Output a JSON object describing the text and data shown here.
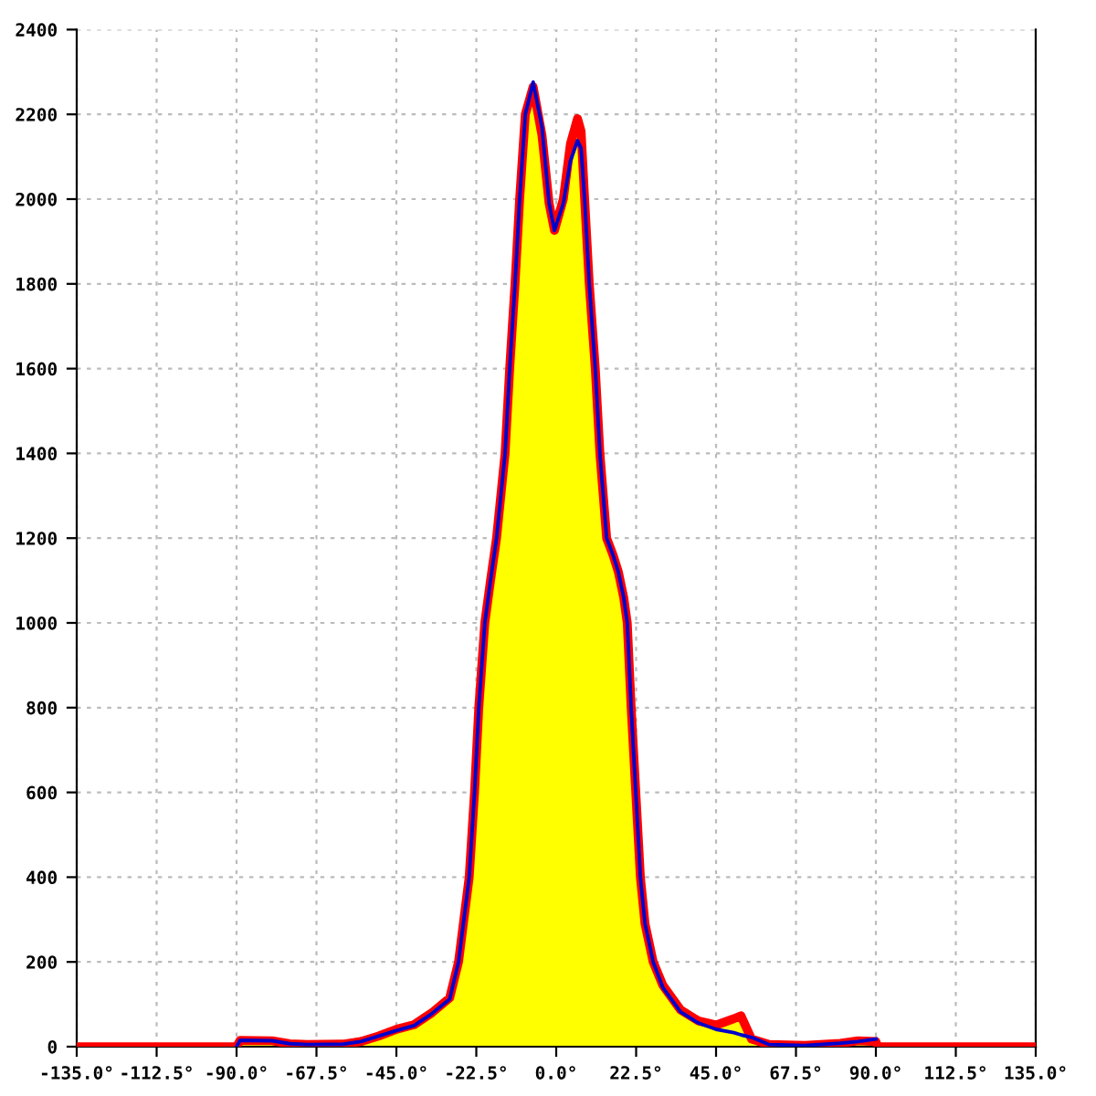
{
  "chart_data": {
    "type": "area",
    "xlim": [
      -135,
      135
    ],
    "xticks": [
      {
        "value": -135,
        "label": "-135.0°"
      },
      {
        "value": -112.5,
        "label": "-112.5°"
      },
      {
        "value": -90,
        "label": "-90.0°"
      },
      {
        "value": -67.5,
        "label": "-67.5°"
      },
      {
        "value": -45,
        "label": "-45.0°"
      },
      {
        "value": -22.5,
        "label": "-22.5°"
      },
      {
        "value": 0,
        "label": "0.0°"
      },
      {
        "value": 22.5,
        "label": "22.5°"
      },
      {
        "value": 45,
        "label": "45.0°"
      },
      {
        "value": 67.5,
        "label": "67.5°"
      },
      {
        "value": 90,
        "label": "90.0°"
      },
      {
        "value": 112.5,
        "label": "112.5°"
      },
      {
        "value": 135,
        "label": "135.0°"
      }
    ],
    "ylim": [
      0,
      2400
    ],
    "yticks": [
      0,
      200,
      400,
      600,
      800,
      1000,
      1200,
      1400,
      1600,
      1800,
      2000,
      2200,
      2400
    ],
    "grid": true,
    "series": [
      {
        "color": "#ff0000",
        "colors": [
          "#ffff00",
          "#ffff00",
          "#ffff00",
          "#ffff00",
          "#ffff00",
          "#ffff00",
          "#ffff00",
          "#ffff00",
          "#ffff00",
          "#ffff00",
          "#ffff00",
          "#ffff00",
          "#ffff00",
          "#ffff00",
          "#ffff00",
          "#ffff00",
          "#ffff00",
          "#ffff00",
          "#ffff00",
          "#ffff00",
          "#ffff00",
          "#ffff00",
          "#ffff00",
          "#ffff00",
          "#ffff00",
          "#ffff00",
          "#ffff00",
          "#ffff00",
          "#ffff00",
          "#ffff00",
          "#ffff00",
          "#ffff00",
          "#ffff00",
          "#ffff00",
          "#ffff00",
          "#ffff00",
          "#ffff00",
          "#ffff00",
          "#ffff00",
          "#ffff00",
          "#ffff00",
          "#ffff00",
          "#ffff00",
          "#ffff00",
          "#ffff00",
          "#ffff00",
          "#ffff00",
          "#ffff00",
          "#ffff00",
          "#ffff00",
          "#ffff00",
          "#ffff00",
          "#ffff00",
          "#ffff00",
          "#ffff00",
          "#ffff00",
          "#ffff00",
          "#ffff00",
          "#ffff00",
          "#ffff00",
          "#ffff00"
        ],
        "x": [
          -135,
          -90,
          -89,
          -80,
          -75,
          -70,
          -60,
          -55,
          -50,
          -45,
          -40,
          -35,
          -30,
          -27.5,
          -24.5,
          -23,
          -21.8,
          -20.1,
          -18.5,
          -16.8,
          -14.4,
          -13.1,
          -11.6,
          -10.3,
          -8.7,
          -6.5,
          -4,
          -2,
          -0.5,
          2,
          4,
          6,
          7,
          8,
          9.3,
          11,
          12.3,
          14.2,
          16,
          17.5,
          19,
          20,
          21.1,
          22.4,
          23.7,
          25,
          27.3,
          30,
          35,
          40,
          45,
          50,
          52,
          55,
          60,
          70,
          80,
          85,
          90,
          90.5,
          135
        ],
        "values": [
          0,
          0,
          15,
          14,
          7,
          5,
          6,
          12,
          25,
          41,
          52,
          80,
          115,
          200,
          400,
          600,
          800,
          1000,
          1100,
          1200,
          1400,
          1600,
          1800,
          2000,
          2200,
          2265,
          2150,
          1990,
          1926,
          2000,
          2130,
          2190,
          2160,
          2000,
          1800,
          1600,
          1400,
          1200,
          1160,
          1120,
          1060,
          1000,
          800,
          600,
          400,
          290,
          200,
          145,
          87,
          61,
          51,
          66,
          73,
          18,
          5,
          3,
          8,
          14,
          12,
          0,
          0
        ]
      },
      {
        "type": "line",
        "color": "#0000cc",
        "x": [
          -90,
          -89,
          -80,
          -75,
          -70,
          -60,
          -55,
          -50,
          -45,
          -40,
          -35,
          -30,
          -27.5,
          -24.5,
          -23,
          -21.8,
          -20.1,
          -18.5,
          -16.8,
          -14.4,
          -13.1,
          -11.6,
          -10.3,
          -8.7,
          -6.5,
          -4,
          -2,
          -0.5,
          2,
          4,
          6,
          7,
          8,
          9.3,
          11,
          12.3,
          14.2,
          16,
          17.5,
          19,
          20,
          21.1,
          22.4,
          23.7,
          25,
          27.3,
          30,
          35,
          40,
          45,
          50,
          52,
          55,
          60,
          70,
          80,
          85,
          90
        ],
        "values": [
          0,
          15,
          14,
          7,
          5,
          6,
          12,
          25,
          38,
          50,
          78,
          112,
          200,
          400,
          600,
          800,
          1000,
          1100,
          1200,
          1400,
          1600,
          1800,
          2000,
          2200,
          2276,
          2170,
          1990,
          1926,
          1990,
          2090,
          2138,
          2120,
          2000,
          1800,
          1600,
          1400,
          1200,
          1160,
          1120,
          1060,
          1000,
          800,
          600,
          400,
          290,
          200,
          140,
          82,
          56,
          41,
          33,
          28,
          22,
          5,
          3,
          8,
          12,
          18
        ]
      }
    ]
  }
}
